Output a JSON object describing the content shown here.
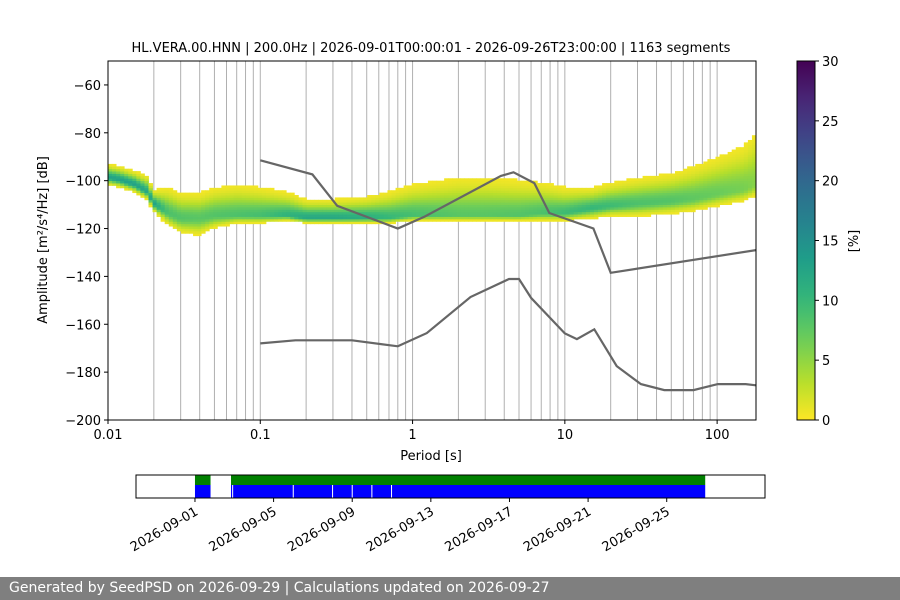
{
  "chart_data": [
    {
      "type": "heatmap",
      "title": "HL.VERA.00.HNN | 200.0Hz | 2026-09-01T00:00:01 - 2026-09-26T23:00:00 | 1163 segments",
      "xlabel": "Period [s]",
      "ylabel": "Amplitude [m²/s⁴/Hz] [dB]",
      "x_scale": "log",
      "xlim": [
        0.01,
        180
      ],
      "ylim": [
        -200,
        -50
      ],
      "x_ticks": [
        {
          "value": 0.01,
          "label": "0.01"
        },
        {
          "value": 0.1,
          "label": "0.1"
        },
        {
          "value": 1,
          "label": "1"
        },
        {
          "value": 10,
          "label": "10"
        },
        {
          "value": 100,
          "label": "100"
        }
      ],
      "y_ticks": [
        -60,
        -80,
        -100,
        -120,
        -140,
        -160,
        -180,
        -200
      ],
      "colorbar": {
        "label": "[%]",
        "range": [
          0,
          30
        ],
        "ticks": [
          0,
          5,
          10,
          15,
          20,
          25,
          30
        ],
        "colormap": "viridis_r"
      },
      "grid": "vertical lines at log period intervals",
      "psd_band": {
        "period": [
          0.01,
          0.012,
          0.015,
          0.018,
          0.02,
          0.025,
          0.03,
          0.04,
          0.05,
          0.07,
          0.1,
          0.15,
          0.2,
          0.3,
          0.5,
          0.7,
          1,
          2,
          3,
          5,
          7,
          10,
          15,
          20,
          30,
          50,
          70,
          100,
          150,
          180
        ],
        "mode_db": [
          -99,
          -100,
          -102,
          -105,
          -110,
          -114,
          -116,
          -116,
          -115,
          -115,
          -115,
          -115,
          -116,
          -116,
          -116,
          -116,
          -115,
          -115,
          -115,
          -115,
          -114,
          -114,
          -112,
          -111,
          -110,
          -109,
          -108,
          -106,
          -104,
          -102
        ],
        "spread_up_db": [
          5,
          5,
          5,
          6,
          5,
          10,
          10,
          10,
          11,
          12,
          11,
          9,
          7,
          7,
          8,
          10,
          12,
          15,
          15,
          14,
          12,
          10,
          8,
          9,
          10,
          11,
          13,
          15,
          18,
          22
        ],
        "spread_down_db": [
          3,
          3,
          3,
          3,
          3,
          5,
          6,
          7,
          5,
          3,
          3,
          2,
          2,
          2,
          2,
          2,
          2,
          2,
          2,
          2,
          3,
          3,
          4,
          4,
          5,
          5,
          5,
          5,
          5,
          5
        ]
      },
      "noise_models": [
        {
          "name": "",
          "color": "#666666",
          "x": [
            0.1,
            0.22,
            0.32,
            0.8,
            1.2,
            3.8,
            4.6,
            6.3,
            7.9,
            15.4,
            20,
            180
          ],
          "y": [
            -91.5,
            -97.4,
            -110.5,
            -120,
            -115,
            -98,
            -96.5,
            -101,
            -113.5,
            -120,
            -138.5,
            -129
          ]
        },
        {
          "name": "",
          "color": "#666666",
          "x": [
            0.1,
            0.17,
            0.4,
            0.8,
            1.24,
            2.4,
            4.3,
            5,
            6,
            10,
            12,
            15.6,
            21.9,
            31.6,
            45,
            70,
            101,
            154,
            180
          ],
          "y": [
            -168,
            -166.7,
            -166.7,
            -169.2,
            -163.7,
            -148.6,
            -141.1,
            -141.1,
            -149,
            -163.8,
            -166.2,
            -162.1,
            -177.5,
            -185,
            -187.5,
            -187.5,
            -185,
            -185,
            -185.5
          ]
        }
      ]
    },
    {
      "type": "timeline",
      "xlim": [
        "2026-08-29",
        "2026-09-30"
      ],
      "x_ticks": [
        "2026-09-01",
        "2026-09-05",
        "2026-09-09",
        "2026-09-13",
        "2026-09-17",
        "2026-09-21",
        "2026-09-25"
      ],
      "colors": {
        "available": "#0000ff",
        "used": "#008000"
      },
      "used_intervals": [
        [
          "2026-09-01T00:00",
          "2026-09-01T19:00"
        ],
        [
          "2026-09-02T20:00",
          "2026-09-26T23:00"
        ]
      ],
      "available_intervals": [
        [
          "2026-09-01T00:00",
          "2026-09-01T19:00"
        ],
        [
          "2026-09-02T20:00",
          "2026-09-26T23:00"
        ]
      ],
      "gap_marks": [
        "2026-09-02T22:00",
        "2026-09-06T00:00",
        "2026-09-08T00:00",
        "2026-09-09T00:00",
        "2026-09-10T00:00",
        "2026-09-11T00:00"
      ]
    }
  ],
  "footer": {
    "text": "Generated by SeedPSD on 2026-09-29 | Calculations updated on 2026-09-27"
  }
}
